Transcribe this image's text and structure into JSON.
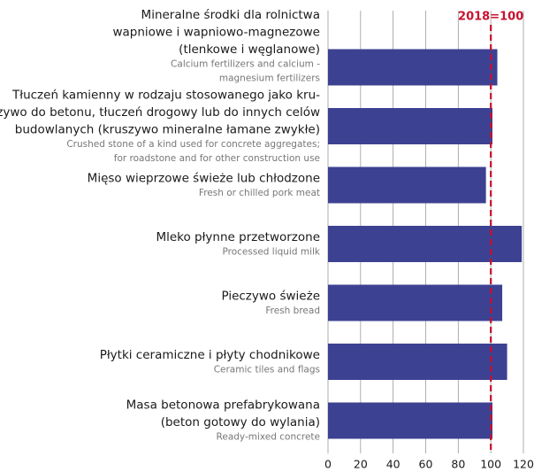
{
  "chart_data": {
    "type": "bar",
    "orientation": "horizontal",
    "categories": [
      [
        "Mineralne środki dla rolnictwa",
        "wapniowe i wapniowo-magnezowe",
        "(tlenkowe i węglanowe)"
      ],
      [
        "Tłuczeń kamienny w rodzaju stosowanego jako kru-",
        "szywo do betonu, tłuczeń drogowy lub do innych celów",
        "budowlanych (kruszywo mineralne łamane zwykłe)"
      ],
      [
        "Mięso wieprzowe świeże lub chłodzone"
      ],
      [
        "Mleko płynne przetworzone"
      ],
      [
        "Pieczywo świeże"
      ],
      [
        "Płytki ceramiczne i płyty chodnikowe"
      ],
      [
        "Masa betonowa prefabrykowana",
        "(beton gotowy do wylania)"
      ]
    ],
    "categories_en": [
      [
        "Calcium fertilizers and calcium -",
        "magnesium fertilizers"
      ],
      [
        "Crushed stone of a kind used for concrete aggregates;",
        "for roadstone and for other construction use"
      ],
      [
        "Fresh or chilled pork meat"
      ],
      [
        "Processed liquid milk"
      ],
      [
        "Fresh bread"
      ],
      [
        "Ceramic tiles and flags"
      ],
      [
        "Ready-mixed concrete"
      ]
    ],
    "values": [
      104,
      101,
      97,
      119,
      107,
      110,
      101
    ],
    "color": "#3d4192",
    "xlim": [
      0,
      120
    ],
    "xticks": [
      0,
      20,
      40,
      60,
      80,
      100,
      120
    ],
    "grid": true,
    "reference_line": {
      "value": 100,
      "label": "2018=100",
      "color": "#c8102e"
    }
  }
}
